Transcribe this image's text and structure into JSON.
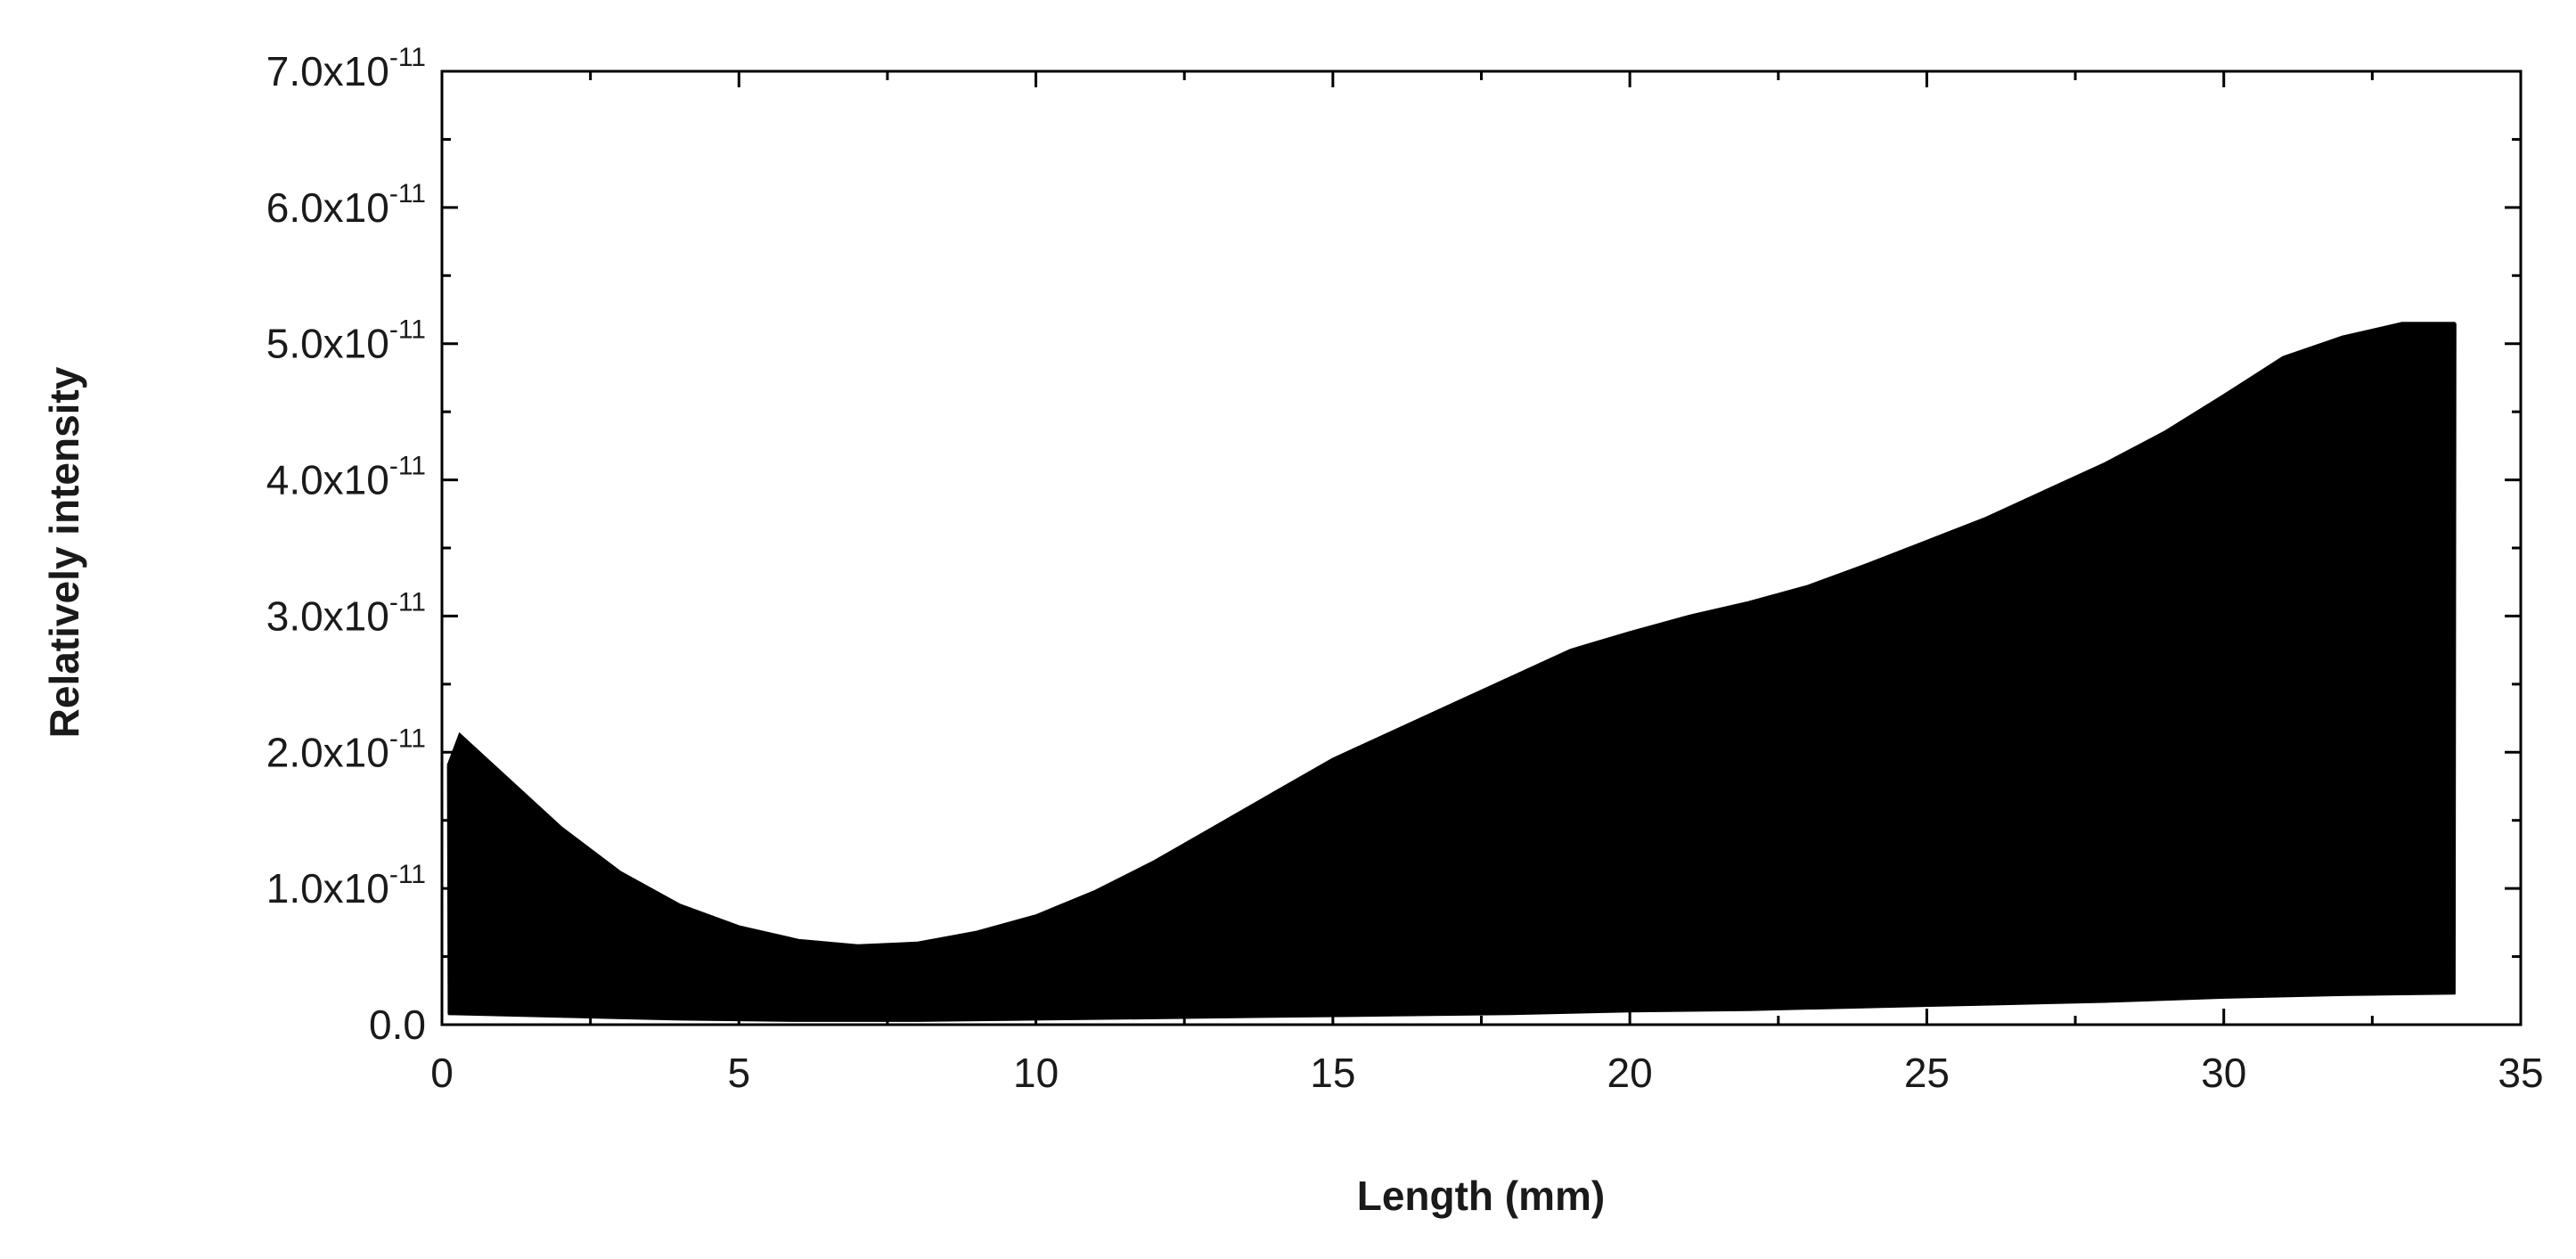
{
  "chart_data": {
    "type": "line",
    "title": "",
    "xlabel": "Length (mm)",
    "ylabel": "Relatively intensity",
    "xlim": [
      0,
      35
    ],
    "ylim": [
      0,
      7e-11
    ],
    "x_ticks": [
      0,
      5,
      10,
      15,
      20,
      25,
      30,
      35
    ],
    "y_ticks": [
      {
        "value": 0,
        "mantissa": "0.0",
        "exponent": ""
      },
      {
        "value": 1e-11,
        "mantissa": "1.0x10",
        "exponent": "-11"
      },
      {
        "value": 2e-11,
        "mantissa": "2.0x10",
        "exponent": "-11"
      },
      {
        "value": 3e-11,
        "mantissa": "3.0x10",
        "exponent": "-11"
      },
      {
        "value": 4e-11,
        "mantissa": "4.0x10",
        "exponent": "-11"
      },
      {
        "value": 5e-11,
        "mantissa": "5.0x10",
        "exponent": "-11"
      },
      {
        "value": 6e-11,
        "mantissa": "6.0x10",
        "exponent": "-11"
      },
      {
        "value": 7e-11,
        "mantissa": "7.0x10",
        "exponent": "-11"
      }
    ],
    "grid": false,
    "legend": "none",
    "line_color": "#000000",
    "x_end": 33.9,
    "series": [
      {
        "kind": "upper_envelope",
        "x": [
          0.1,
          0.3,
          0.5,
          1.0,
          2.0,
          3.0,
          4.0,
          5.0,
          6.0,
          7.0,
          8.0,
          9.0,
          10.0,
          11.0,
          12.0,
          13.0,
          14.0,
          15.0,
          16.0,
          17.0,
          18.0,
          19.0,
          20.0,
          21.0,
          22.0,
          23.0,
          24.0,
          25.0,
          26.0,
          27.0,
          28.0,
          29.0,
          30.0,
          31.0,
          32.0,
          33.0,
          33.9
        ],
        "y": [
          1.9e-11,
          2.13e-11,
          2.05e-11,
          1.85e-11,
          1.45e-11,
          1.12e-11,
          8.8e-12,
          7.2e-12,
          6.2e-12,
          5.8e-12,
          6e-12,
          6.8e-12,
          8e-12,
          9.8e-12,
          1.2e-11,
          1.45e-11,
          1.7e-11,
          1.95e-11,
          2.15e-11,
          2.35e-11,
          2.55e-11,
          2.75e-11,
          2.88e-11,
          3e-11,
          3.1e-11,
          3.22e-11,
          3.38e-11,
          3.55e-11,
          3.72e-11,
          3.92e-11,
          4.12e-11,
          4.35e-11,
          4.62e-11,
          4.9e-11,
          5.05e-11,
          5.15e-11,
          5.15e-11
        ]
      },
      {
        "kind": "lower_envelope",
        "x": [
          0.1,
          2.0,
          4.0,
          6.0,
          8.0,
          10.0,
          12.0,
          14.0,
          16.0,
          18.0,
          20.0,
          22.0,
          24.0,
          26.0,
          28.0,
          30.0,
          32.0,
          33.9
        ],
        "y": [
          8e-13,
          6e-13,
          4e-13,
          3e-13,
          3e-13,
          4e-13,
          5e-13,
          6e-13,
          7e-13,
          8e-13,
          1e-12,
          1.1e-12,
          1.3e-12,
          1.5e-12,
          1.7e-12,
          2e-12,
          2.2e-12,
          2.3e-12
        ]
      }
    ]
  }
}
